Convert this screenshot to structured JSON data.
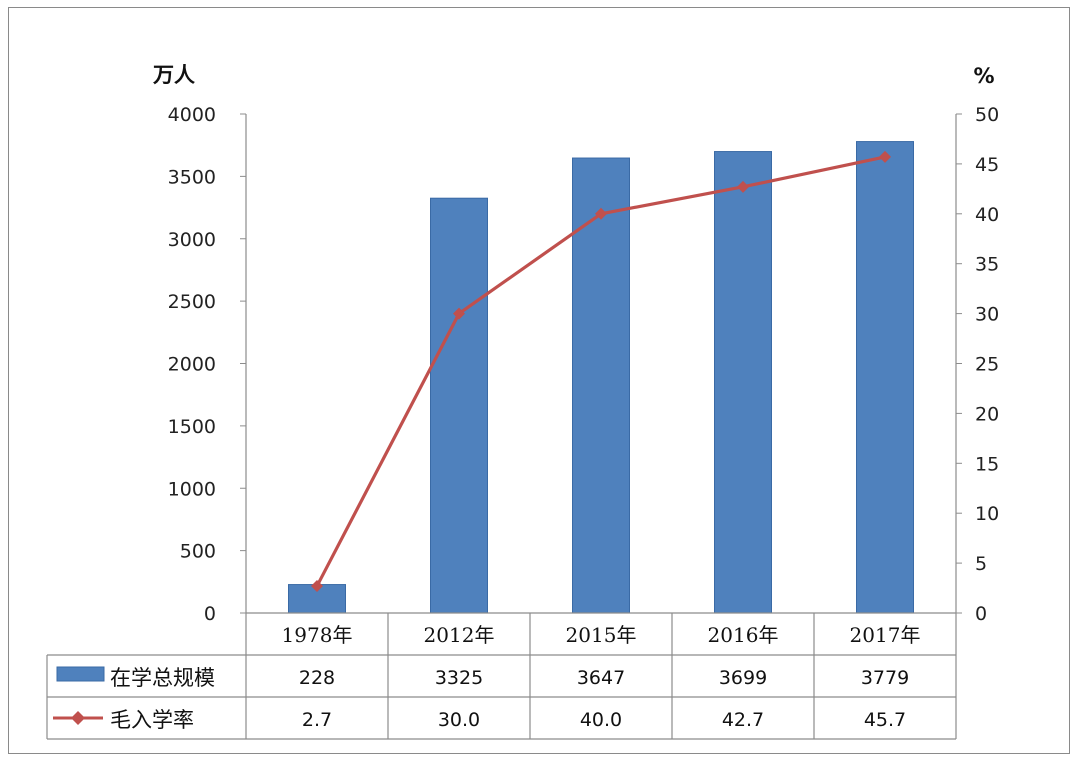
{
  "chart_data": {
    "type": "bar",
    "categories": [
      "1978年",
      "2012年",
      "2015年",
      "2016年",
      "2017年"
    ],
    "series": [
      {
        "name": "在学总规模",
        "type": "bar",
        "axis": "left",
        "values": [
          228,
          3325,
          3647,
          3699,
          3779
        ],
        "color": "#4f81bd"
      },
      {
        "name": "毛入学率",
        "type": "line",
        "axis": "right",
        "values": [
          2.7,
          30.0,
          40.0,
          42.7,
          45.7
        ],
        "color": "#c0504d"
      }
    ],
    "table_values": [
      [
        "228",
        "3325",
        "3647",
        "3699",
        "3779"
      ],
      [
        "2.7",
        "30.0",
        "40.0",
        "42.7",
        "45.7"
      ]
    ],
    "ylabel_left": "万人",
    "ylabel_right": "%",
    "ylim_left": [
      0,
      4000
    ],
    "ylim_right": [
      0,
      50
    ],
    "yticks_left": [
      "0",
      "500",
      "1000",
      "1500",
      "2000",
      "2500",
      "3000",
      "3500",
      "4000"
    ],
    "yticks_right": [
      "0",
      "5",
      "10",
      "15",
      "20",
      "25",
      "30",
      "35",
      "40",
      "45",
      "50"
    ],
    "grid": false,
    "legend": "data-table"
  }
}
